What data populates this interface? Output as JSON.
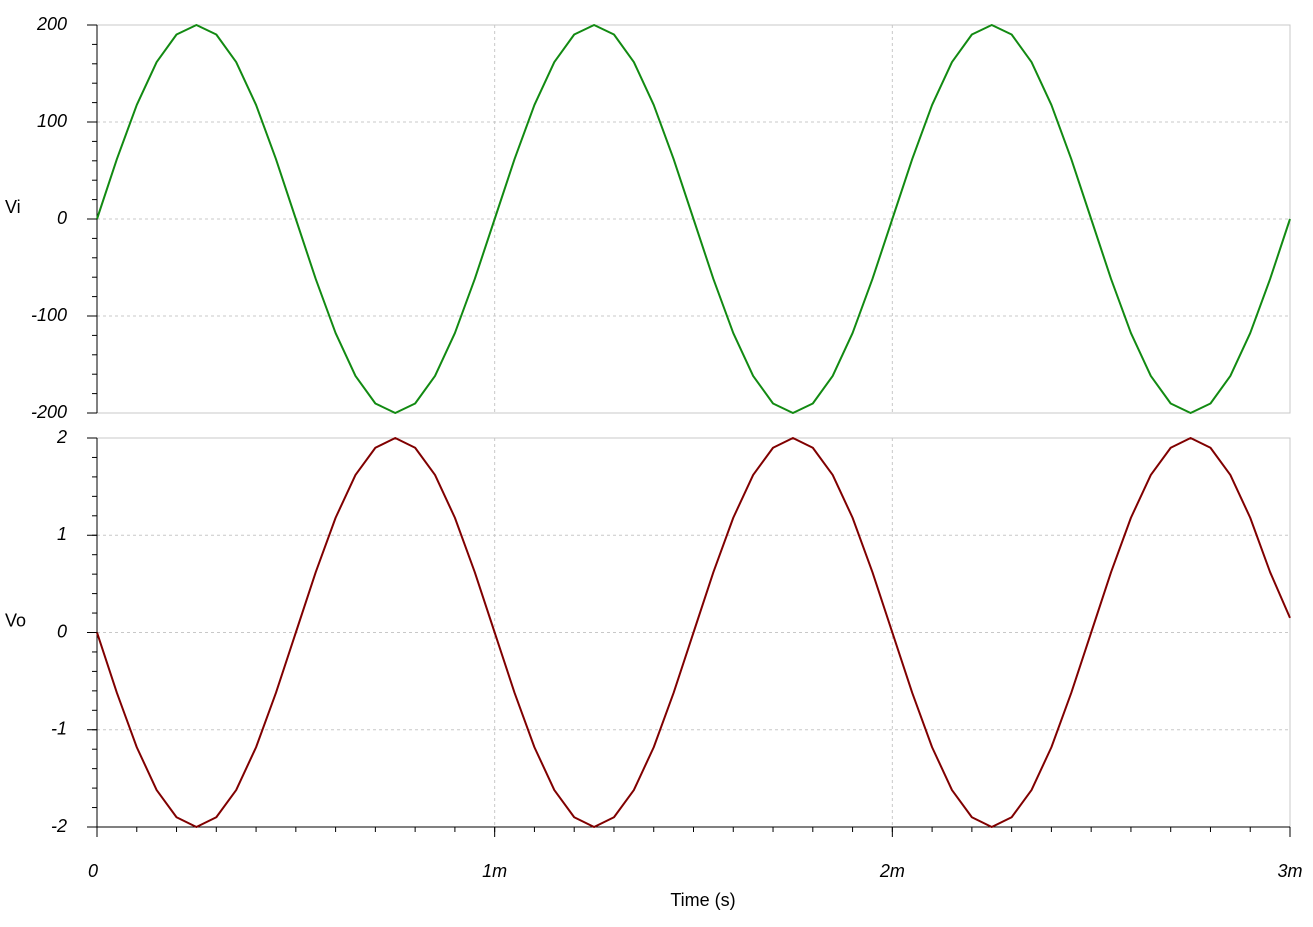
{
  "chart_data": [
    {
      "type": "line",
      "ylabel": "Vi",
      "x": [
        0,
        5e-05,
        0.0001,
        0.00015,
        0.0002,
        0.00025,
        0.0003,
        0.00035,
        0.0004,
        0.00045,
        0.0005,
        0.00055,
        0.0006,
        0.00065,
        0.0007,
        0.00075,
        0.0008,
        0.00085,
        0.0009,
        0.00095,
        0.001,
        0.00105,
        0.0011,
        0.00115,
        0.0012,
        0.00125,
        0.0013,
        0.00135,
        0.0014,
        0.00145,
        0.0015,
        0.00155,
        0.0016,
        0.00165,
        0.0017,
        0.00175,
        0.0018,
        0.00185,
        0.0019,
        0.00195,
        0.002,
        0.00205,
        0.0021,
        0.00215,
        0.0022,
        0.00225,
        0.0023,
        0.00235,
        0.0024,
        0.00245,
        0.0025,
        0.00255,
        0.0026,
        0.00265,
        0.0027,
        0.00275,
        0.0028,
        0.00285,
        0.0029,
        0.00295,
        0.003
      ],
      "series": [
        {
          "name": "Vi",
          "color": "#128a12",
          "values": [
            0,
            61.8,
            117.6,
            161.8,
            190.2,
            200,
            190.2,
            161.8,
            117.6,
            61.8,
            0,
            -61.8,
            -117.6,
            -161.8,
            -190.2,
            -200,
            -190.2,
            -161.8,
            -117.6,
            -61.8,
            0,
            61.8,
            117.6,
            161.8,
            190.2,
            200,
            190.2,
            161.8,
            117.6,
            61.8,
            0,
            -61.8,
            -117.6,
            -161.8,
            -190.2,
            -200,
            -190.2,
            -161.8,
            -117.6,
            -61.8,
            0,
            61.8,
            117.6,
            161.8,
            190.2,
            200,
            190.2,
            161.8,
            117.6,
            61.8,
            0,
            -61.8,
            -117.6,
            -161.8,
            -190.2,
            -200,
            -190.2,
            -161.8,
            -117.6,
            -61.8,
            0
          ]
        }
      ],
      "xlim": [
        0,
        0.003
      ],
      "xticks": [
        0,
        0.001,
        0.002,
        0.003
      ],
      "ylim": [
        -200,
        200
      ],
      "yticks": [
        -200,
        -100,
        0,
        100,
        200
      ],
      "grid": true
    },
    {
      "type": "line",
      "ylabel": "Vo",
      "xlabel": "Time (s)",
      "x": [
        0,
        5e-05,
        0.0001,
        0.00015,
        0.0002,
        0.00025,
        0.0003,
        0.00035,
        0.0004,
        0.00045,
        0.0005,
        0.00055,
        0.0006,
        0.00065,
        0.0007,
        0.00075,
        0.0008,
        0.00085,
        0.0009,
        0.00095,
        0.001,
        0.00105,
        0.0011,
        0.00115,
        0.0012,
        0.00125,
        0.0013,
        0.00135,
        0.0014,
        0.00145,
        0.0015,
        0.00155,
        0.0016,
        0.00165,
        0.0017,
        0.00175,
        0.0018,
        0.00185,
        0.0019,
        0.00195,
        0.002,
        0.00205,
        0.0021,
        0.00215,
        0.0022,
        0.00225,
        0.0023,
        0.00235,
        0.0024,
        0.00245,
        0.0025,
        0.00255,
        0.0026,
        0.00265,
        0.0027,
        0.00275,
        0.0028,
        0.00285,
        0.0029,
        0.00295,
        0.003
      ],
      "series": [
        {
          "name": "Vo",
          "color": "#800000",
          "values": [
            0,
            -0.62,
            -1.18,
            -1.62,
            -1.9,
            -2,
            -1.9,
            -1.62,
            -1.18,
            -0.62,
            0,
            0.62,
            1.18,
            1.62,
            1.9,
            2,
            1.9,
            1.62,
            1.18,
            0.62,
            0,
            -0.62,
            -1.18,
            -1.62,
            -1.9,
            -2,
            -1.9,
            -1.62,
            -1.18,
            -0.62,
            0,
            0.62,
            1.18,
            1.62,
            1.9,
            2,
            1.9,
            1.62,
            1.18,
            0.62,
            0,
            -0.62,
            -1.18,
            -1.62,
            -1.9,
            -2,
            -1.9,
            -1.62,
            -1.18,
            -0.62,
            0,
            0.62,
            1.18,
            1.62,
            1.9,
            2,
            1.9,
            1.62,
            1.18,
            0.62,
            0.15
          ]
        }
      ],
      "xlim": [
        0,
        0.003
      ],
      "xticks": [
        0,
        {
          "value": 0.001,
          "label": "1m"
        },
        {
          "value": 0.002,
          "label": "2m"
        },
        {
          "value": 0.003,
          "label": "3m"
        }
      ],
      "ylim": [
        -2,
        2
      ],
      "yticks": [
        -2,
        -1,
        0,
        1,
        2
      ],
      "grid": true
    }
  ]
}
